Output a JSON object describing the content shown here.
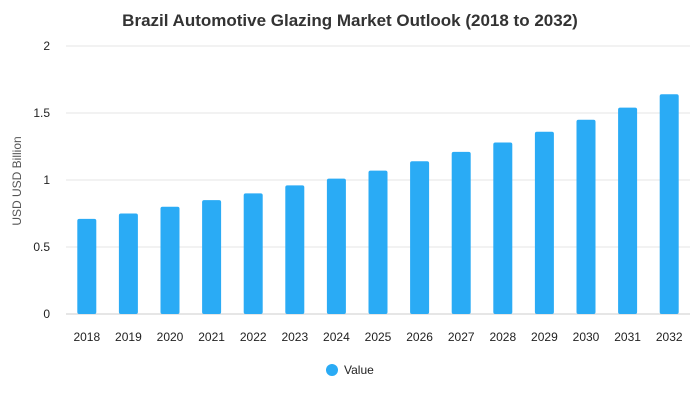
{
  "chart_data": {
    "type": "bar",
    "title": "Brazil Automotive Glazing Market Outlook (2018 to 2032)",
    "xlabel": "",
    "ylabel": "USD USD Billion",
    "categories": [
      "2018",
      "2019",
      "2020",
      "2021",
      "2022",
      "2023",
      "2024",
      "2025",
      "2026",
      "2027",
      "2028",
      "2029",
      "2030",
      "2031",
      "2032"
    ],
    "series": [
      {
        "name": "Value",
        "color": "#2aabf5",
        "values": [
          0.71,
          0.75,
          0.8,
          0.85,
          0.9,
          0.96,
          1.01,
          1.07,
          1.14,
          1.21,
          1.28,
          1.36,
          1.45,
          1.54,
          1.64
        ]
      }
    ],
    "ylim": [
      0,
      2
    ],
    "yticks": [
      "0",
      "0.5",
      "1",
      "1.5",
      "2"
    ],
    "grid": true,
    "legend_position": "bottom-center"
  }
}
